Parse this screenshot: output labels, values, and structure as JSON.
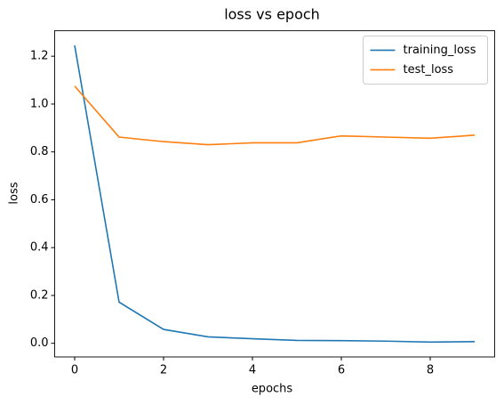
{
  "chart_data": {
    "type": "line",
    "title": "loss vs epoch",
    "x_label": "epochs",
    "y_label": "loss",
    "x": [
      0,
      1,
      2,
      3,
      4,
      5,
      6,
      7,
      8,
      9
    ],
    "series": [
      {
        "name": "training_loss",
        "color": "#1f77b4",
        "values": [
          1.245,
          0.172,
          0.058,
          0.027,
          0.019,
          0.012,
          0.011,
          0.009,
          0.005,
          0.007
        ]
      },
      {
        "name": "test_loss",
        "color": "#ff7f0e",
        "values": [
          1.075,
          0.862,
          0.843,
          0.83,
          0.838,
          0.838,
          0.867,
          0.862,
          0.857,
          0.87
        ]
      }
    ],
    "xlim": [
      -0.45,
      9.45
    ],
    "ylim": [
      -0.057,
      1.307
    ],
    "xticks": [
      0,
      2,
      4,
      6,
      8
    ],
    "yticks": [
      {
        "value": 0,
        "label": "0.0"
      },
      {
        "value": 0.2,
        "label": "0.2"
      },
      {
        "value": 0.4,
        "label": "0.4"
      },
      {
        "value": 0.6,
        "label": "0.6"
      },
      {
        "value": 0.8,
        "label": "0.8"
      },
      {
        "value": 1,
        "label": "1.0"
      },
      {
        "value": 1.2,
        "label": "1.2"
      }
    ],
    "grid": false,
    "legend": "upper right"
  }
}
